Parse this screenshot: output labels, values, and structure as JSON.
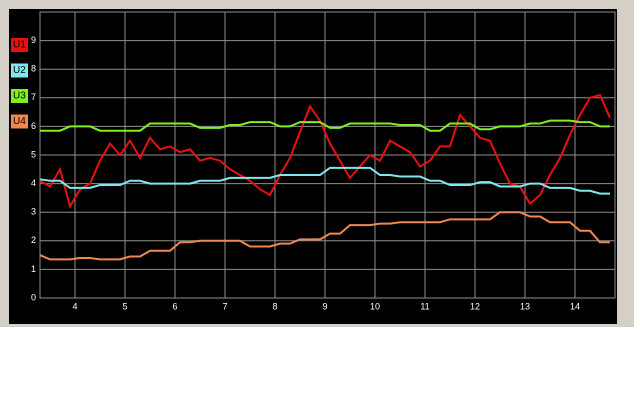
{
  "chart_data": {
    "type": "line",
    "x": [
      3.3,
      3.5,
      3.7,
      3.9,
      4.1,
      4.3,
      4.5,
      4.7,
      4.9,
      5.1,
      5.3,
      5.5,
      5.7,
      5.9,
      6.1,
      6.3,
      6.5,
      6.7,
      6.9,
      7.1,
      7.3,
      7.5,
      7.7,
      7.9,
      8.1,
      8.3,
      8.5,
      8.7,
      8.9,
      9.1,
      9.3,
      9.5,
      9.7,
      9.9,
      10.1,
      10.3,
      10.5,
      10.7,
      10.9,
      11.1,
      11.3,
      11.5,
      11.7,
      11.9,
      12.1,
      12.3,
      12.5,
      12.7,
      12.9,
      13.1,
      13.3,
      13.5,
      13.7,
      13.9,
      14.1,
      14.3,
      14.5,
      14.7
    ],
    "series": [
      {
        "name": "U1",
        "color": "#e81010",
        "values": [
          4.1,
          3.9,
          4.5,
          3.2,
          3.8,
          4.0,
          4.8,
          5.4,
          5.0,
          5.5,
          4.9,
          5.6,
          5.2,
          5.3,
          5.1,
          5.2,
          4.8,
          4.9,
          4.8,
          4.5,
          4.3,
          4.1,
          3.8,
          3.6,
          4.3,
          4.9,
          5.8,
          6.7,
          6.2,
          5.4,
          4.8,
          4.2,
          4.6,
          5.0,
          4.8,
          5.5,
          5.3,
          5.1,
          4.6,
          4.8,
          5.3,
          5.3,
          6.4,
          6.0,
          5.6,
          5.5,
          4.7,
          4.0,
          3.9,
          3.3,
          3.6,
          4.3,
          4.9,
          5.7,
          6.4,
          7.0,
          7.1,
          6.3
        ]
      },
      {
        "name": "U2",
        "color": "#80e8f0",
        "values": [
          4.15,
          4.1,
          4.1,
          3.85,
          3.85,
          3.85,
          3.95,
          3.95,
          3.95,
          4.1,
          4.1,
          4.0,
          4.0,
          4.0,
          4.0,
          4.0,
          4.1,
          4.1,
          4.1,
          4.2,
          4.2,
          4.2,
          4.2,
          4.2,
          4.3,
          4.3,
          4.3,
          4.3,
          4.3,
          4.55,
          4.55,
          4.55,
          4.55,
          4.55,
          4.3,
          4.3,
          4.25,
          4.25,
          4.25,
          4.1,
          4.1,
          3.95,
          3.95,
          3.95,
          4.05,
          4.05,
          3.9,
          3.9,
          3.9,
          4.0,
          4.0,
          3.85,
          3.85,
          3.85,
          3.75,
          3.75,
          3.65,
          3.65
        ]
      },
      {
        "name": "U3",
        "color": "#80f020",
        "values": [
          5.85,
          5.85,
          5.85,
          6.0,
          6.0,
          6.0,
          5.85,
          5.85,
          5.85,
          5.85,
          5.85,
          6.1,
          6.1,
          6.1,
          6.1,
          6.1,
          5.95,
          5.95,
          5.95,
          6.05,
          6.05,
          6.15,
          6.15,
          6.15,
          6.0,
          6.0,
          6.15,
          6.15,
          6.15,
          5.95,
          5.95,
          6.1,
          6.1,
          6.1,
          6.1,
          6.1,
          6.05,
          6.05,
          6.05,
          5.85,
          5.85,
          6.1,
          6.1,
          6.1,
          5.9,
          5.9,
          6.0,
          6.0,
          6.0,
          6.1,
          6.1,
          6.2,
          6.2,
          6.2,
          6.15,
          6.15,
          6.0,
          6.0
        ]
      },
      {
        "name": "U4",
        "color": "#f08850",
        "values": [
          1.5,
          1.35,
          1.35,
          1.35,
          1.4,
          1.4,
          1.35,
          1.35,
          1.35,
          1.45,
          1.45,
          1.65,
          1.65,
          1.65,
          1.95,
          1.95,
          2.0,
          2.0,
          2.0,
          2.0,
          2.0,
          1.8,
          1.8,
          1.8,
          1.9,
          1.9,
          2.05,
          2.05,
          2.05,
          2.25,
          2.25,
          2.55,
          2.55,
          2.55,
          2.6,
          2.6,
          2.65,
          2.65,
          2.65,
          2.65,
          2.65,
          2.75,
          2.75,
          2.75,
          2.75,
          2.75,
          3.0,
          3.0,
          3.0,
          2.85,
          2.85,
          2.65,
          2.65,
          2.65,
          2.35,
          2.35,
          1.95,
          1.95
        ]
      }
    ],
    "xlim": [
      3.3,
      14.8
    ],
    "xticks": [
      4,
      5,
      6,
      7,
      8,
      9,
      10,
      11,
      12,
      13,
      14
    ],
    "ylim": [
      0,
      10
    ],
    "yticks": [
      0,
      1,
      2,
      3,
      4,
      5,
      6,
      7,
      8,
      9
    ],
    "grid": true
  }
}
